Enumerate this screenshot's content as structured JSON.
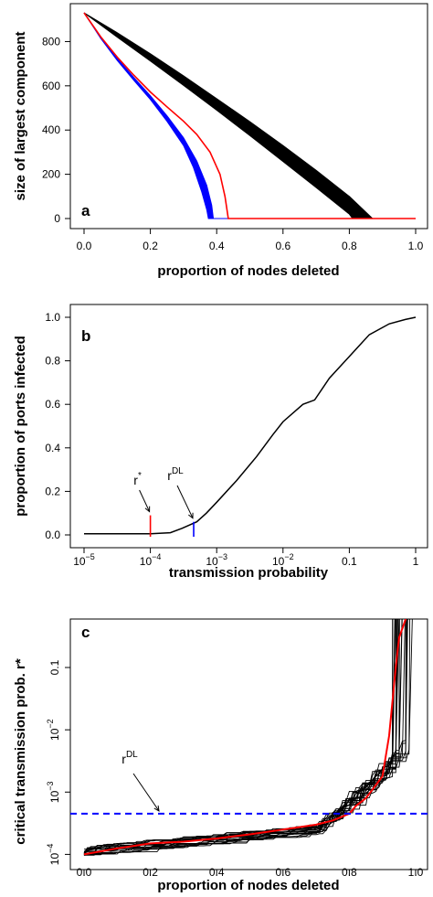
{
  "chart_data": [
    {
      "type": "line",
      "panel": "a",
      "xlabel": "proportion of nodes deleted",
      "ylabel": "size of largest component",
      "xlim": [
        0,
        1
      ],
      "ylim": [
        0,
        930
      ],
      "x_ticks": [
        0,
        0.2,
        0.4,
        0.6,
        0.8,
        1
      ],
      "x_tick_labels": [
        "0.0",
        "0.2",
        "0.4",
        "0.6",
        "0.8",
        "1.0"
      ],
      "y_ticks": [
        0,
        200,
        400,
        600,
        800
      ],
      "y_tick_labels": [
        "0",
        "200",
        "400",
        "600",
        "800"
      ],
      "grid": false,
      "series": [
        {
          "color": "#000000",
          "style": "band",
          "upper": [
            [
              0,
              930
            ],
            [
              0.1,
              840
            ],
            [
              0.2,
              745
            ],
            [
              0.3,
              645
            ],
            [
              0.4,
              542
            ],
            [
              0.5,
              438
            ],
            [
              0.6,
              330
            ],
            [
              0.7,
              218
            ],
            [
              0.8,
              100
            ],
            [
              0.87,
              0
            ],
            [
              1,
              0
            ]
          ],
          "lower": [
            [
              0,
              930
            ],
            [
              0.1,
              820
            ],
            [
              0.2,
              712
            ],
            [
              0.3,
              602
            ],
            [
              0.4,
              490
            ],
            [
              0.5,
              375
            ],
            [
              0.6,
              258
            ],
            [
              0.7,
              140
            ],
            [
              0.8,
              20
            ],
            [
              0.81,
              0
            ],
            [
              1,
              0
            ]
          ]
        },
        {
          "color": "#0000ff",
          "style": "band",
          "upper": [
            [
              0,
              930
            ],
            [
              0.05,
              820
            ],
            [
              0.1,
              725
            ],
            [
              0.15,
              638
            ],
            [
              0.2,
              555
            ],
            [
              0.25,
              465
            ],
            [
              0.3,
              365
            ],
            [
              0.34,
              260
            ],
            [
              0.37,
              150
            ],
            [
              0.385,
              60
            ],
            [
              0.39,
              0
            ],
            [
              1,
              0
            ]
          ],
          "lower": [
            [
              0,
              930
            ],
            [
              0.05,
              815
            ],
            [
              0.1,
              715
            ],
            [
              0.15,
              625
            ],
            [
              0.2,
              538
            ],
            [
              0.25,
              440
            ],
            [
              0.3,
              330
            ],
            [
              0.33,
              230
            ],
            [
              0.355,
              120
            ],
            [
              0.37,
              40
            ],
            [
              0.375,
              0
            ],
            [
              1,
              0
            ]
          ]
        },
        {
          "color": "#ff0000",
          "style": "line",
          "points": [
            [
              0,
              930
            ],
            [
              0.05,
              822
            ],
            [
              0.1,
              730
            ],
            [
              0.15,
              648
            ],
            [
              0.2,
              572
            ],
            [
              0.25,
              505
            ],
            [
              0.3,
              440
            ],
            [
              0.34,
              380
            ],
            [
              0.38,
              300
            ],
            [
              0.41,
              200
            ],
            [
              0.425,
              100
            ],
            [
              0.435,
              0
            ],
            [
              1,
              0
            ]
          ]
        }
      ]
    },
    {
      "type": "line",
      "panel": "b",
      "xlabel": "transmission probability",
      "ylabel": "proportion of ports infected",
      "x_scale": "log",
      "xlim": [
        1e-05,
        1
      ],
      "ylim": [
        -0.02,
        1.02
      ],
      "x_ticks": [
        1e-05,
        0.0001,
        0.001,
        0.01,
        0.1,
        1
      ],
      "x_tick_labels": [
        {
          "base": "10",
          "exp": "−5"
        },
        {
          "base": "10",
          "exp": "−4"
        },
        {
          "base": "10",
          "exp": "−3"
        },
        {
          "base": "10",
          "exp": "−2"
        },
        {
          "base": "0.1",
          "exp": ""
        },
        {
          "base": "1",
          "exp": ""
        }
      ],
      "y_ticks": [
        0,
        0.2,
        0.4,
        0.6,
        0.8,
        1
      ],
      "y_tick_labels": [
        "0.0",
        "0.2",
        "0.4",
        "0.6",
        "0.8",
        "1.0"
      ],
      "grid": false,
      "series": [
        {
          "color": "#000000",
          "points": [
            [
              1e-05,
              0.005
            ],
            [
              3e-05,
              0.005
            ],
            [
              0.0001,
              0.005
            ],
            [
              0.0002,
              0.01
            ],
            [
              0.0003,
              0.03
            ],
            [
              0.0005,
              0.06
            ],
            [
              0.0007,
              0.1
            ],
            [
              0.001,
              0.15
            ],
            [
              0.002,
              0.25
            ],
            [
              0.004,
              0.36
            ],
            [
              0.007,
              0.46
            ],
            [
              0.01,
              0.52
            ],
            [
              0.02,
              0.6
            ],
            [
              0.03,
              0.62
            ],
            [
              0.05,
              0.72
            ],
            [
              0.1,
              0.82
            ],
            [
              0.2,
              0.92
            ],
            [
              0.4,
              0.97
            ],
            [
              0.7,
              0.99
            ],
            [
              1,
              1.0
            ]
          ]
        }
      ],
      "markers": [
        {
          "x": 0.0001,
          "y_top": 0.09,
          "color": "#ff0000",
          "label": "r",
          "sup": "*"
        },
        {
          "x": 0.00045,
          "y_top": 0.06,
          "color": "#0000ff",
          "label": "r",
          "sup": "DL"
        }
      ],
      "panel_letter": "b"
    },
    {
      "type": "line",
      "panel": "c",
      "xlabel": "proportion of nodes deleted",
      "ylabel": "critical transmission prob. r*",
      "y_scale": "log",
      "xlim": [
        0,
        1
      ],
      "ylim": [
        8e-05,
        0.6
      ],
      "x_ticks": [
        0,
        0.2,
        0.4,
        0.6,
        0.8,
        1
      ],
      "x_tick_labels": [
        "0.0",
        "0.2",
        "0.4",
        "0.6",
        "0.8",
        "1.0"
      ],
      "y_ticks": [
        0.0001,
        0.001,
        0.01,
        0.1
      ],
      "y_tick_labels": [
        {
          "base": "10",
          "exp": "−4"
        },
        {
          "base": "10",
          "exp": "−3"
        },
        {
          "base": "10",
          "exp": "−2"
        },
        {
          "base": "0.1",
          "exp": ""
        }
      ],
      "grid": false,
      "reference_line": {
        "y": 0.00045,
        "color": "#0000ff",
        "style": "dashed",
        "label": "r",
        "sup": "DL"
      },
      "series_red": {
        "color": "#ff0000",
        "points": [
          [
            0,
            0.0001
          ],
          [
            0.1,
            0.000125
          ],
          [
            0.2,
            0.00015
          ],
          [
            0.3,
            0.00016
          ],
          [
            0.4,
            0.00018
          ],
          [
            0.5,
            0.00021
          ],
          [
            0.6,
            0.00025
          ],
          [
            0.7,
            0.0003
          ],
          [
            0.75,
            0.00035
          ],
          [
            0.8,
            0.00045
          ],
          [
            0.82,
            0.0006
          ],
          [
            0.85,
            0.0008
          ],
          [
            0.87,
            0.0011
          ],
          [
            0.9,
            0.0018
          ],
          [
            0.92,
            0.008
          ],
          [
            0.94,
            0.1
          ],
          [
            0.95,
            0.3
          ],
          [
            0.97,
            0.6
          ]
        ]
      },
      "series_black_count": 20,
      "panel_letter": "c"
    }
  ]
}
